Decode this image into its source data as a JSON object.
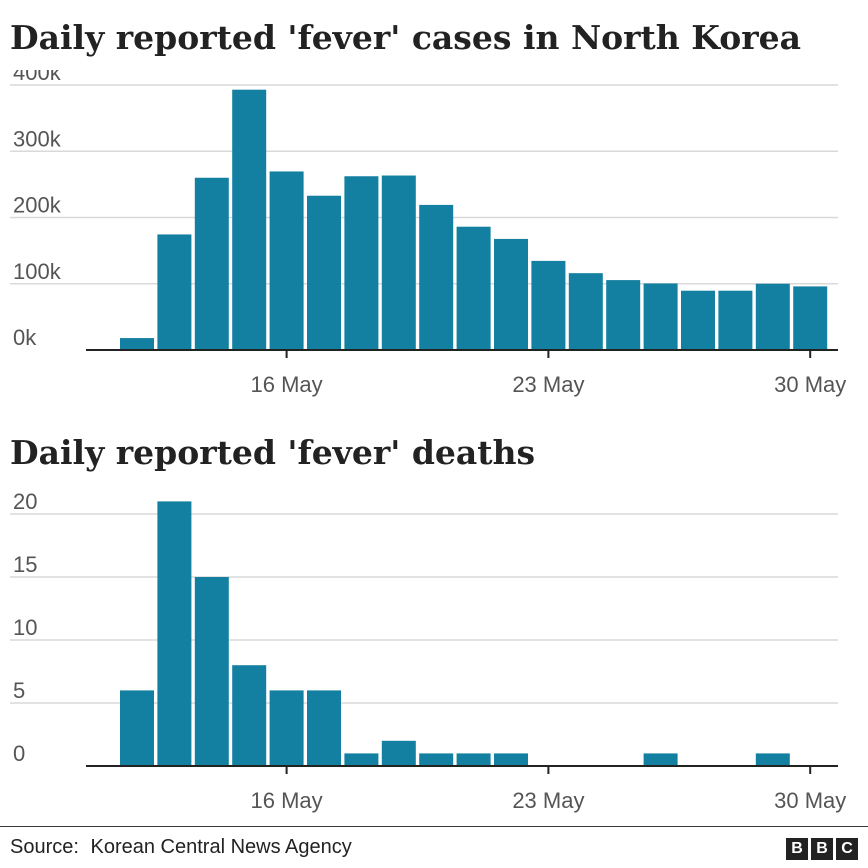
{
  "chart_data": [
    {
      "type": "bar",
      "title": "Daily reported 'fever' cases in North Korea",
      "xlabel": "",
      "ylabel": "",
      "categories": [
        "12 May",
        "13 May",
        "14 May",
        "15 May",
        "16 May",
        "17 May",
        "18 May",
        "19 May",
        "20 May",
        "21 May",
        "22 May",
        "23 May",
        "24 May",
        "25 May",
        "26 May",
        "27 May",
        "28 May",
        "29 May",
        "30 May"
      ],
      "values": [
        18000,
        174440,
        260000,
        392920,
        269510,
        232880,
        262270,
        263370,
        219030,
        186090,
        167650,
        134510,
        115970,
        105500,
        100460,
        89500,
        89500,
        100000,
        96000
      ],
      "ylim": [
        0,
        400000
      ],
      "yticks": [
        0,
        100000,
        200000,
        300000,
        400000
      ],
      "ytick_labels": [
        "0k",
        "100k",
        "200k",
        "300k",
        "400k"
      ],
      "xticks": [
        {
          "index": 4,
          "label": "16 May"
        },
        {
          "index": 11,
          "label": "23 May"
        },
        {
          "index": 18,
          "label": "30 May"
        }
      ],
      "bar_color": "#1380a1",
      "grid": true
    },
    {
      "type": "bar",
      "title": "Daily reported 'fever' deaths",
      "xlabel": "",
      "ylabel": "",
      "categories": [
        "12 May",
        "13 May",
        "14 May",
        "15 May",
        "16 May",
        "17 May",
        "18 May",
        "19 May",
        "20 May",
        "21 May",
        "22 May",
        "23 May",
        "24 May",
        "25 May",
        "26 May",
        "27 May",
        "28 May",
        "29 May",
        "30 May"
      ],
      "values": [
        6,
        21,
        15,
        8,
        6,
        6,
        1,
        2,
        1,
        1,
        1,
        0,
        0,
        0,
        1,
        0,
        0,
        1,
        0
      ],
      "ylim": [
        0,
        20
      ],
      "yticks": [
        0,
        5,
        10,
        15,
        20
      ],
      "ytick_labels": [
        "0",
        "5",
        "10",
        "15",
        "20"
      ],
      "xticks": [
        {
          "index": 4,
          "label": "16 May"
        },
        {
          "index": 11,
          "label": "23 May"
        },
        {
          "index": 18,
          "label": "30 May"
        }
      ],
      "bar_color": "#1380a1",
      "grid": true
    }
  ],
  "footer": {
    "source_label": "Source:",
    "source_text": "Korean Central News Agency",
    "logo": [
      "B",
      "B",
      "C"
    ]
  }
}
